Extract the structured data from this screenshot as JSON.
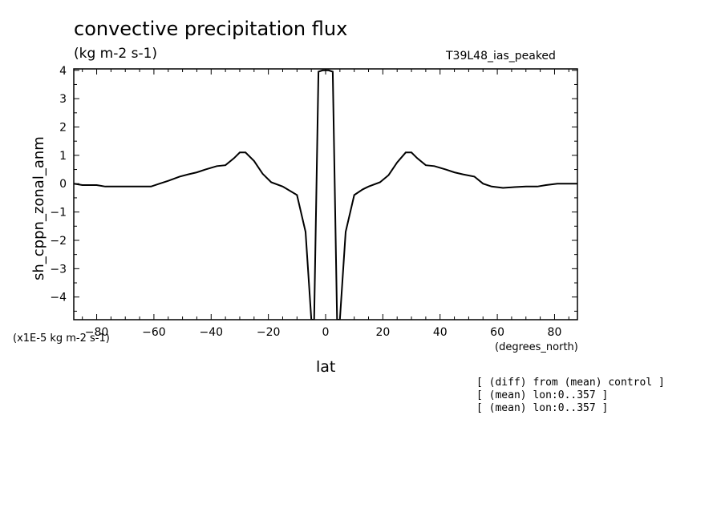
{
  "header": {
    "title": "convective precipitation flux",
    "units": "(kg m-2 s-1)",
    "run_name": "T39L48_ias_peaked"
  },
  "axes": {
    "ylabel": "sh_cppn_zonal_anm",
    "xlabel": "lat",
    "x_units": "(degrees_north)",
    "y_scale_note": "(x1E-5 kg m-2 s-1)"
  },
  "notes": [
    "[ (diff) from (mean) control ]",
    "[ (mean) lon:0..357 ]",
    "[ (mean) lon:0..357 ]"
  ],
  "chart_data": {
    "type": "line",
    "title": "convective precipitation flux",
    "xlabel": "lat",
    "ylabel": "sh_cppn_zonal_anm",
    "xlim": [
      -88,
      88
    ],
    "ylim": [
      -4.8,
      4.05
    ],
    "x_ticks": [
      -80,
      -60,
      -40,
      -20,
      0,
      20,
      40,
      60,
      80
    ],
    "y_ticks": [
      -4,
      -3,
      -2,
      -1,
      0,
      1,
      2,
      3,
      4
    ],
    "x_tick_labels": [
      "-80",
      "-60",
      "-40",
      "-20",
      "0",
      "20",
      "40",
      "60",
      "80"
    ],
    "y_tick_labels": [
      "-4",
      "-3",
      "-2",
      "-1",
      "0",
      "1",
      "2",
      "3",
      "4"
    ],
    "grid": false,
    "series": [
      {
        "x": [
          -88,
          -85,
          -80,
          -77,
          -74,
          -70,
          -65,
          -61,
          -58,
          -55,
          -51,
          -48,
          -45,
          -42,
          -38,
          -35,
          -32,
          -30,
          -28,
          -25,
          -22,
          -19,
          -15,
          -10,
          -7,
          -5,
          -4,
          -2.5,
          -1,
          0,
          1,
          2.5,
          4,
          5,
          7,
          10,
          13,
          15,
          19,
          22,
          25,
          28,
          30,
          32,
          35,
          38,
          42,
          45,
          48,
          52,
          55,
          58,
          62,
          66,
          70,
          74,
          77,
          81,
          85,
          88
        ],
        "y": [
          0.0,
          -0.05,
          -0.05,
          -0.1,
          -0.1,
          -0.1,
          -0.1,
          -0.1,
          0.0,
          0.1,
          0.25,
          0.33,
          0.4,
          0.5,
          0.62,
          0.65,
          0.9,
          1.1,
          1.1,
          0.8,
          0.35,
          0.05,
          -0.1,
          -0.4,
          -1.7,
          -4.8,
          -4.8,
          3.95,
          4.0,
          4.0,
          4.0,
          3.95,
          -4.8,
          -4.8,
          -1.7,
          -0.4,
          -0.2,
          -0.1,
          0.05,
          0.3,
          0.75,
          1.1,
          1.1,
          0.9,
          0.65,
          0.62,
          0.5,
          0.4,
          0.33,
          0.25,
          0.0,
          -0.1,
          -0.15,
          -0.12,
          -0.1,
          -0.1,
          -0.05,
          0.0,
          0.0,
          0.0
        ]
      }
    ],
    "line_color": "#000000"
  }
}
